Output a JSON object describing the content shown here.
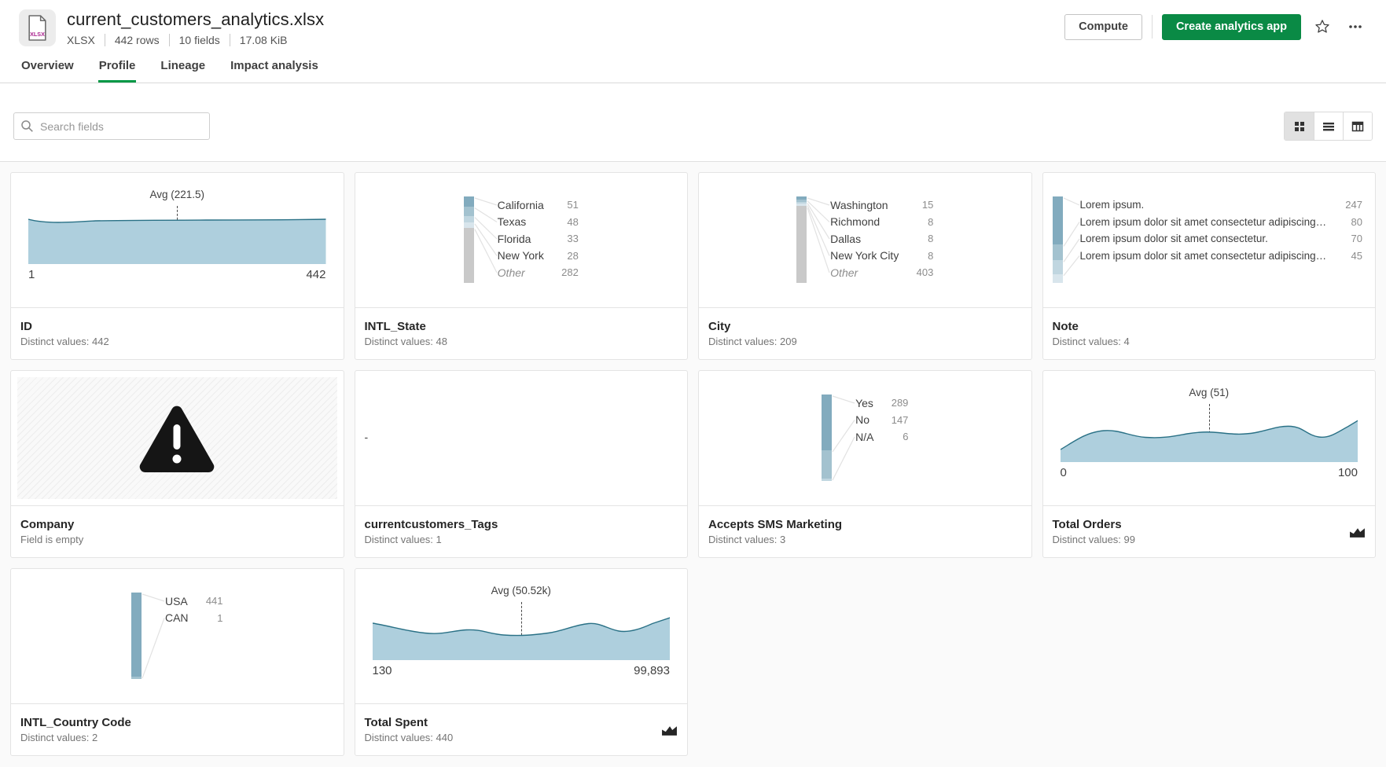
{
  "header": {
    "title": "current_customers_analytics.xlsx",
    "file_badge": "XLSX",
    "meta": [
      "XLSX",
      "442 rows",
      "10 fields",
      "17.08 KiB"
    ],
    "actions": {
      "compute": "Compute",
      "create_app": "Create analytics app"
    }
  },
  "tabs": [
    {
      "label": "Overview",
      "active": false
    },
    {
      "label": "Profile",
      "active": true
    },
    {
      "label": "Lineage",
      "active": false
    },
    {
      "label": "Impact analysis",
      "active": false
    }
  ],
  "toolbar": {
    "search_placeholder": "Search fields",
    "views": [
      "grid",
      "list",
      "table"
    ],
    "active_view": "grid"
  },
  "icons": {
    "file": "xlsx-file-icon",
    "favorite": "star-icon",
    "more": "ellipsis-icon",
    "search": "search-icon",
    "views": [
      "grid-view-icon",
      "list-view-icon",
      "table-view-icon"
    ],
    "numeric_field": "area-chart-icon",
    "empty_field": "warning-triangle-icon"
  },
  "colors": {
    "accent_green": "#0a8a45",
    "tab_underline": "#009845",
    "chart_fill": "#aecfdd",
    "chart_stroke": "#2a7186",
    "bar_palette": [
      "#82abbe",
      "#a3c2cf",
      "#c0d6e0",
      "#d8e5ec"
    ],
    "bar_other": "#c9c9c9"
  },
  "cards": [
    {
      "type": "area",
      "shape": "flat",
      "name": "ID",
      "subtitle": "Distinct values: 442",
      "avg_label": "Avg (221.5)",
      "min_label": "1",
      "max_label": "442",
      "footer_icon": false
    },
    {
      "type": "categories",
      "name": "INTL_State",
      "subtitle": "Distinct values: 48",
      "rows": [
        {
          "label": "California",
          "value": 51
        },
        {
          "label": "Texas",
          "value": 48
        },
        {
          "label": "Florida",
          "value": 33
        },
        {
          "label": "New York",
          "value": 28
        },
        {
          "label": "Other",
          "value": 282,
          "other": true
        }
      ]
    },
    {
      "type": "categories",
      "name": "City",
      "subtitle": "Distinct values: 209",
      "rows": [
        {
          "label": "Washington",
          "value": 15
        },
        {
          "label": "Richmond",
          "value": 8
        },
        {
          "label": "Dallas",
          "value": 8
        },
        {
          "label": "New York City",
          "value": 8
        },
        {
          "label": "Other",
          "value": 403,
          "other": true
        }
      ]
    },
    {
      "type": "categories",
      "wide": true,
      "name": "Note",
      "subtitle": "Distinct values: 4",
      "rows": [
        {
          "label": "Lorem ipsum.",
          "value": 247
        },
        {
          "label": "Lorem ipsum dolor sit amet consectetur adipiscing elit q...",
          "value": 80
        },
        {
          "label": "Lorem ipsum dolor sit amet consectetur.",
          "value": 70
        },
        {
          "label": "Lorem ipsum dolor sit amet consectetur adipiscing elit q...",
          "value": 45
        }
      ]
    },
    {
      "type": "empty",
      "name": "Company",
      "subtitle": "Field is empty"
    },
    {
      "type": "single",
      "name": "currentcustomers_Tags",
      "subtitle": "Distinct values: 1",
      "value": "-"
    },
    {
      "type": "categories",
      "name": "Accepts SMS Marketing",
      "subtitle": "Distinct values: 3",
      "rows": [
        {
          "label": "Yes",
          "value": 289
        },
        {
          "label": "No",
          "value": 147
        },
        {
          "label": "N/A",
          "value": 6
        }
      ]
    },
    {
      "type": "area",
      "shape": "wave1",
      "name": "Total Orders",
      "subtitle": "Distinct values: 99",
      "avg_label": "Avg (51)",
      "min_label": "0",
      "max_label": "100",
      "footer_icon": true
    },
    {
      "type": "categories",
      "name": "INTL_Country Code",
      "subtitle": "Distinct values: 2",
      "rows": [
        {
          "label": "USA",
          "value": 441
        },
        {
          "label": "CAN",
          "value": 1
        }
      ]
    },
    {
      "type": "area",
      "shape": "wave2",
      "name": "Total Spent",
      "subtitle": "Distinct values: 440",
      "avg_label": "Avg (50.52k)",
      "min_label": "130",
      "max_label": "99,893",
      "footer_icon": true
    }
  ]
}
